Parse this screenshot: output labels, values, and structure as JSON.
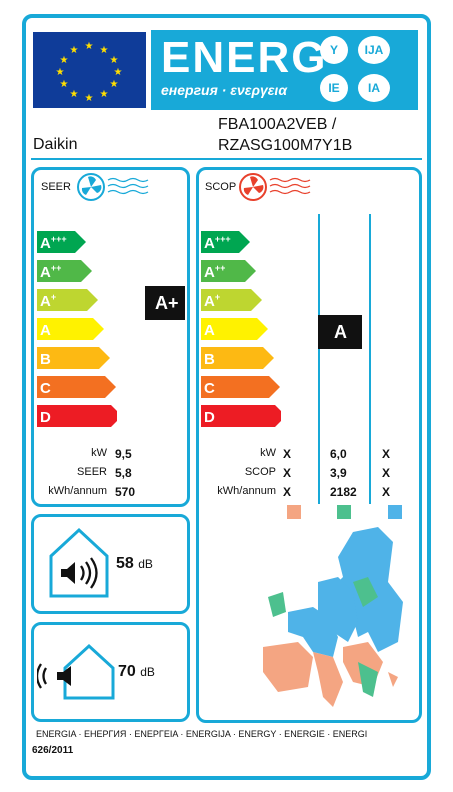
{
  "header": {
    "energy_word": "ENERG",
    "energy_sub": "енергия · ενεργεια",
    "lang_codes": [
      "Y",
      "IJA",
      "IE",
      "IA"
    ],
    "supplier": "Daikin",
    "model_indoor": "FBA100A2VEB /",
    "model_outdoor": "RZASG100M7Y1B"
  },
  "scale_labels": [
    "A+++",
    "A++",
    "A+",
    "A",
    "B",
    "C",
    "D"
  ],
  "scale_colors": [
    "#00a651",
    "#50b848",
    "#bed630",
    "#fff200",
    "#fdb913",
    "#f37021",
    "#ed1c24"
  ],
  "seer_panel": {
    "title": "SEER",
    "rating": "A+",
    "rows": [
      {
        "label": "kW",
        "value": "9,5"
      },
      {
        "label": "SEER",
        "value": "5,8"
      },
      {
        "label": "kWh/annum",
        "value": "570"
      }
    ]
  },
  "scop_panel": {
    "title": "SCOP",
    "rating": "A",
    "rows": [
      {
        "label": "kW",
        "col1": "X",
        "col2": "6,0",
        "col3": "X"
      },
      {
        "label": "SCOP",
        "col1": "X",
        "col2": "3,9",
        "col3": "X"
      },
      {
        "label": "kWh/annum",
        "col1": "X",
        "col2": "2182",
        "col3": "X"
      }
    ],
    "zone_colors": [
      "#f4a582",
      "#4dc08e",
      "#4fb3e8"
    ]
  },
  "noise": {
    "indoor_value": "58",
    "outdoor_value": "70",
    "unit": "dB"
  },
  "footer": {
    "languages": "ENERGIA · ЕНЕРГИЯ · ΕΝΕΡΓΕΙΑ · ENERGIJA · ENERGY · ENERGIE · ENERGI",
    "regulation": "626/2011"
  }
}
